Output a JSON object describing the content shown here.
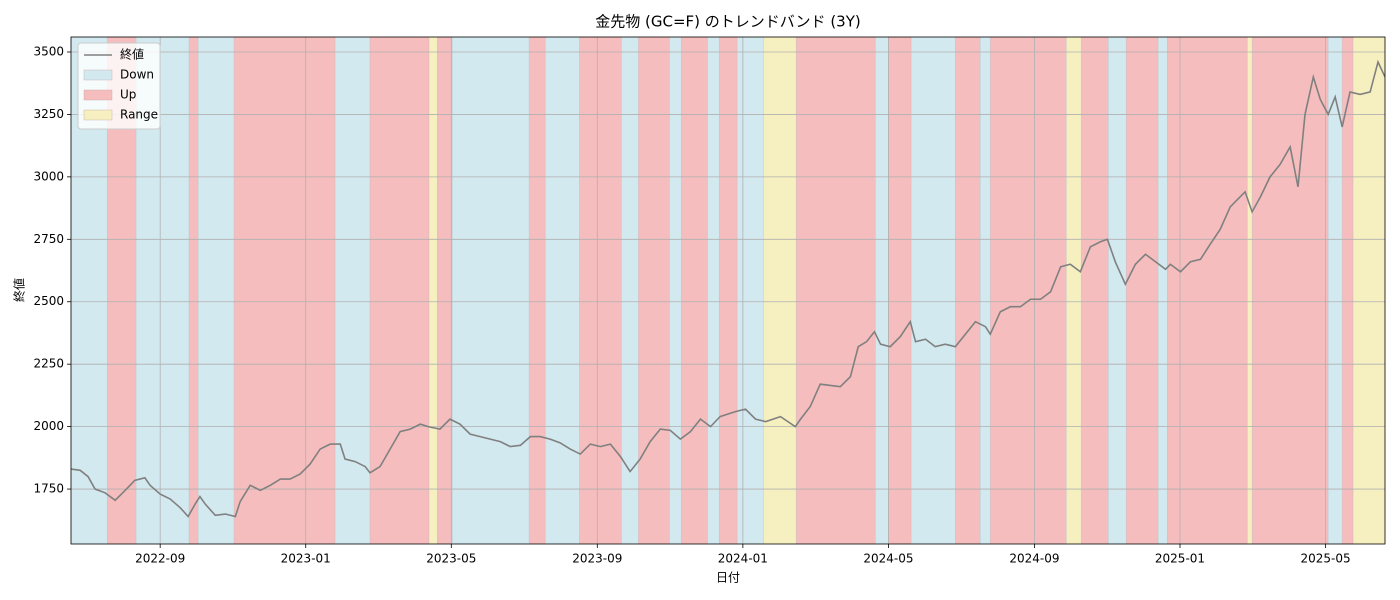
{
  "chart_data": {
    "type": "line",
    "title": "金先物 (GC=F) のトレンドバンド (3Y)",
    "x_label": "日付",
    "y_label": "終値",
    "grid": true,
    "legend": "upper left",
    "xlim": [
      2022.463,
      2025.469
    ],
    "ylim": [
      1530,
      3560
    ],
    "xticks": [
      {
        "value": 2022.667,
        "label": "2022-09"
      },
      {
        "value": 2023.0,
        "label": "2023-01"
      },
      {
        "value": 2023.333,
        "label": "2023-05"
      },
      {
        "value": 2023.667,
        "label": "2023-09"
      },
      {
        "value": 2024.0,
        "label": "2024-01"
      },
      {
        "value": 2024.333,
        "label": "2024-05"
      },
      {
        "value": 2024.667,
        "label": "2024-09"
      },
      {
        "value": 2025.0,
        "label": "2025-01"
      },
      {
        "value": 2025.333,
        "label": "2025-05"
      }
    ],
    "yticks": [
      1750,
      2000,
      2250,
      2500,
      2750,
      3000,
      3250,
      3500
    ],
    "series": [
      {
        "name": "終値",
        "color": "#808080",
        "x": [
          2022.463,
          2022.484,
          2022.502,
          2022.518,
          2022.541,
          2022.564,
          2022.587,
          2022.609,
          2022.632,
          2022.644,
          2022.667,
          2022.69,
          2022.713,
          2022.731,
          2022.747,
          2022.758,
          2022.77,
          2022.793,
          2022.816,
          2022.839,
          2022.85,
          2022.873,
          2022.896,
          2022.919,
          2022.942,
          2022.964,
          2022.987,
          2023.01,
          2023.033,
          2023.056,
          2023.079,
          2023.09,
          2023.113,
          2023.136,
          2023.147,
          2023.17,
          2023.193,
          2023.216,
          2023.239,
          2023.262,
          2023.28,
          2023.307,
          2023.33,
          2023.353,
          2023.376,
          2023.399,
          2023.422,
          2023.445,
          2023.468,
          2023.491,
          2023.514,
          2023.536,
          2023.559,
          2023.582,
          2023.605,
          2023.628,
          2023.651,
          2023.674,
          2023.697,
          2023.72,
          2023.742,
          2023.765,
          2023.788,
          2023.811,
          2023.834,
          2023.857,
          2023.88,
          2023.903,
          2023.926,
          2023.948,
          2023.983,
          2024.006,
          2024.029,
          2024.052,
          2024.086,
          2024.12,
          2024.132,
          2024.154,
          2024.177,
          2024.2,
          2024.223,
          2024.246,
          2024.264,
          2024.283,
          2024.301,
          2024.315,
          2024.337,
          2024.36,
          2024.383,
          2024.395,
          2024.418,
          2024.44,
          2024.463,
          2024.486,
          2024.509,
          2024.532,
          2024.555,
          2024.566,
          2024.589,
          2024.612,
          2024.635,
          2024.658,
          2024.681,
          2024.704,
          2024.727,
          2024.749,
          2024.772,
          2024.795,
          2024.818,
          2024.834,
          2024.852,
          2024.875,
          2024.898,
          2024.921,
          2024.944,
          2024.967,
          2024.978,
          2025.001,
          2025.024,
          2025.047,
          2025.069,
          2025.092,
          2025.115,
          2025.149,
          2025.165,
          2025.184,
          2025.206,
          2025.229,
          2025.252,
          2025.27,
          2025.286,
          2025.305,
          2025.321,
          2025.339,
          2025.355,
          2025.371,
          2025.389,
          2025.412,
          2025.435,
          2025.453,
          2025.469
        ],
        "values": [
          1830,
          1825,
          1800,
          1750,
          1735,
          1705,
          1745,
          1785,
          1795,
          1765,
          1730,
          1710,
          1675,
          1640,
          1690,
          1720,
          1690,
          1645,
          1650,
          1640,
          1700,
          1765,
          1745,
          1765,
          1790,
          1790,
          1810,
          1850,
          1910,
          1930,
          1930,
          1870,
          1860,
          1840,
          1815,
          1840,
          1910,
          1980,
          1990,
          2010,
          2000,
          1990,
          2030,
          2010,
          1970,
          1960,
          1950,
          1940,
          1920,
          1925,
          1960,
          1960,
          1950,
          1935,
          1910,
          1890,
          1930,
          1920,
          1930,
          1880,
          1820,
          1870,
          1940,
          1990,
          1985,
          1950,
          1980,
          2030,
          2000,
          2040,
          2060,
          2070,
          2030,
          2020,
          2040,
          2000,
          2030,
          2080,
          2170,
          2165,
          2160,
          2200,
          2320,
          2340,
          2380,
          2330,
          2320,
          2360,
          2420,
          2340,
          2350,
          2320,
          2330,
          2320,
          2370,
          2420,
          2400,
          2370,
          2460,
          2480,
          2480,
          2510,
          2510,
          2540,
          2640,
          2650,
          2620,
          2720,
          2740,
          2750,
          2660,
          2570,
          2650,
          2690,
          2660,
          2630,
          2650,
          2620,
          2660,
          2670,
          2730,
          2790,
          2880,
          2940,
          2860,
          2920,
          3000,
          3050,
          3120,
          2960,
          3250,
          3400,
          3310,
          3250,
          3320,
          3200,
          3340,
          3330,
          3340,
          3460,
          3400
        ]
      }
    ],
    "band_series": [
      {
        "name": "Down",
        "color": "#d3e9f0"
      },
      {
        "name": "Up",
        "color": "#f5bdbd"
      },
      {
        "name": "Range",
        "color": "#f6efc0"
      }
    ],
    "bands": [
      {
        "start": 2022.463,
        "end": 2022.546,
        "regime": "Down"
      },
      {
        "start": 2022.546,
        "end": 2022.612,
        "regime": "Up"
      },
      {
        "start": 2022.612,
        "end": 2022.733,
        "regime": "Down"
      },
      {
        "start": 2022.733,
        "end": 2022.754,
        "regime": "Up"
      },
      {
        "start": 2022.754,
        "end": 2022.836,
        "regime": "Down"
      },
      {
        "start": 2022.836,
        "end": 2023.067,
        "regime": "Up"
      },
      {
        "start": 2023.067,
        "end": 2023.147,
        "regime": "Down"
      },
      {
        "start": 2023.147,
        "end": 2023.282,
        "regime": "Up"
      },
      {
        "start": 2023.282,
        "end": 2023.301,
        "regime": "Range"
      },
      {
        "start": 2023.301,
        "end": 2023.335,
        "regime": "Up"
      },
      {
        "start": 2023.335,
        "end": 2023.511,
        "regime": "Down"
      },
      {
        "start": 2023.511,
        "end": 2023.548,
        "regime": "Up"
      },
      {
        "start": 2023.548,
        "end": 2023.626,
        "regime": "Down"
      },
      {
        "start": 2023.626,
        "end": 2023.722,
        "regime": "Up"
      },
      {
        "start": 2023.722,
        "end": 2023.761,
        "regime": "Down"
      },
      {
        "start": 2023.761,
        "end": 2023.832,
        "regime": "Up"
      },
      {
        "start": 2023.832,
        "end": 2023.859,
        "regime": "Down"
      },
      {
        "start": 2023.859,
        "end": 2023.919,
        "regime": "Up"
      },
      {
        "start": 2023.919,
        "end": 2023.946,
        "regime": "Down"
      },
      {
        "start": 2023.946,
        "end": 2023.987,
        "regime": "Up"
      },
      {
        "start": 2023.987,
        "end": 2024.047,
        "regime": "Down"
      },
      {
        "start": 2024.047,
        "end": 2024.122,
        "regime": "Range"
      },
      {
        "start": 2024.122,
        "end": 2024.303,
        "regime": "Up"
      },
      {
        "start": 2024.303,
        "end": 2024.333,
        "regime": "Down"
      },
      {
        "start": 2024.333,
        "end": 2024.385,
        "regime": "Up"
      },
      {
        "start": 2024.385,
        "end": 2024.486,
        "regime": "Down"
      },
      {
        "start": 2024.486,
        "end": 2024.543,
        "regime": "Up"
      },
      {
        "start": 2024.543,
        "end": 2024.566,
        "regime": "Down"
      },
      {
        "start": 2024.566,
        "end": 2024.74,
        "regime": "Up"
      },
      {
        "start": 2024.74,
        "end": 2024.774,
        "regime": "Range"
      },
      {
        "start": 2024.774,
        "end": 2024.836,
        "regime": "Up"
      },
      {
        "start": 2024.836,
        "end": 2024.877,
        "regime": "Down"
      },
      {
        "start": 2024.877,
        "end": 2024.95,
        "regime": "Up"
      },
      {
        "start": 2024.95,
        "end": 2024.971,
        "regime": "Down"
      },
      {
        "start": 2024.971,
        "end": 2025.154,
        "regime": "Up"
      },
      {
        "start": 2025.154,
        "end": 2025.165,
        "regime": "Range"
      },
      {
        "start": 2025.165,
        "end": 2025.339,
        "regime": "Up"
      },
      {
        "start": 2025.339,
        "end": 2025.371,
        "regime": "Down"
      },
      {
        "start": 2025.371,
        "end": 2025.396,
        "regime": "Up"
      },
      {
        "start": 2025.396,
        "end": 2025.469,
        "regime": "Range"
      }
    ]
  }
}
